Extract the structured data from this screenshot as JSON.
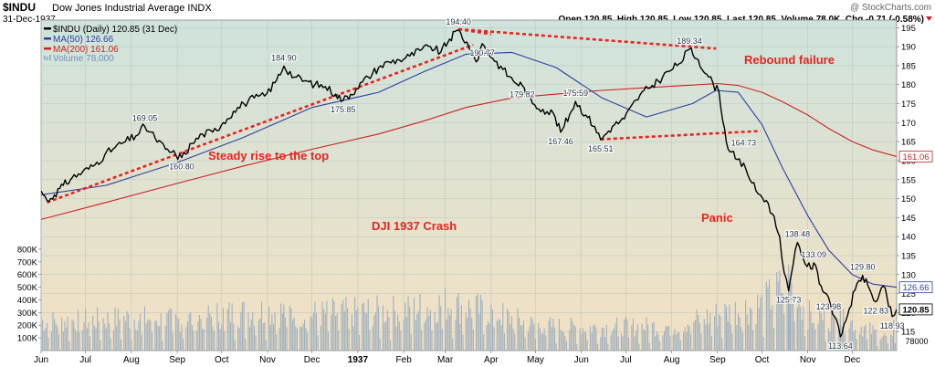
{
  "header": {
    "symbol": "$INDU",
    "name": "Dow Jones Industrial Average INDX",
    "date": "31-Dec-1937",
    "watermark": "@ StockCharts.com",
    "quote": "Open 120.85  High 120.85  Low 120.85  Last 120.85  Volume 78.0K  Chg -0.71 (-0.58%)"
  },
  "legend": [
    {
      "label": "$INDU (Daily) 120.85 (31 Dec)",
      "color": "#000000"
    },
    {
      "label": "MA(50) 126.66",
      "color": "#2b3fa0"
    },
    {
      "label": "MA(200) 161.06",
      "color": "#cc2222"
    },
    {
      "label": "Volume 78,000",
      "color": "#8aa8c8"
    }
  ],
  "annotations": {
    "steady": "Steady rise to the top",
    "crash": "DJI 1937 Crash",
    "rebound": "Rebound failure",
    "panic": "Panic"
  },
  "right_labels": {
    "ma200": "161.06",
    "ma50": "126.66",
    "last": "120.85",
    "volume": "78000"
  },
  "colors": {
    "price": "#000000",
    "ma50": "#2b3fa0",
    "ma200": "#cc2222",
    "annotation_red": "#e8241f",
    "volume_bar": "#9fb0bf",
    "bg_top": "#cfe3dc",
    "bg_bottom": "#f3e1c3"
  },
  "chart_data": {
    "type": "line",
    "x_start": "1936-06-01",
    "x_end": "1937-12-31",
    "y_axis": {
      "min": 110,
      "max": 197,
      "ticks": [
        115,
        120,
        125,
        130,
        135,
        140,
        145,
        150,
        155,
        160,
        165,
        170,
        175,
        180,
        185,
        190,
        195
      ],
      "position": "right"
    },
    "volume_axis": {
      "max": 850000,
      "ticks": [
        100000,
        200000,
        300000,
        400000,
        500000,
        600000,
        700000,
        800000
      ],
      "tick_labels": [
        "100K",
        "200K",
        "300K",
        "400K",
        "500K",
        "600K",
        "700K",
        "800K"
      ],
      "position": "left"
    },
    "x_ticks": [
      {
        "label": "Jun",
        "date": "1936-06-01"
      },
      {
        "label": "Jul",
        "date": "1936-07-01"
      },
      {
        "label": "Aug",
        "date": "1936-08-01"
      },
      {
        "label": "Sep",
        "date": "1936-09-01"
      },
      {
        "label": "Oct",
        "date": "1936-10-01"
      },
      {
        "label": "Nov",
        "date": "1936-11-01"
      },
      {
        "label": "Dec",
        "date": "1936-12-01"
      },
      {
        "label": "1937",
        "date": "1937-01-01",
        "bold": true
      },
      {
        "label": "Feb",
        "date": "1937-02-01"
      },
      {
        "label": "Mar",
        "date": "1937-03-01"
      },
      {
        "label": "Apr",
        "date": "1937-04-01"
      },
      {
        "label": "May",
        "date": "1937-05-01"
      },
      {
        "label": "Jun",
        "date": "1937-06-01"
      },
      {
        "label": "Jul",
        "date": "1937-07-01"
      },
      {
        "label": "Aug",
        "date": "1937-08-01"
      },
      {
        "label": "Sep",
        "date": "1937-09-01"
      },
      {
        "label": "Oct",
        "date": "1937-10-01"
      },
      {
        "label": "Nov",
        "date": "1937-11-01"
      },
      {
        "label": "Dec",
        "date": "1937-12-01"
      }
    ],
    "series": [
      {
        "name": "$INDU (Daily)",
        "points": [
          [
            "1936-06-01",
            152.0
          ],
          [
            "1936-06-05",
            149.5
          ],
          [
            "1936-06-10",
            151.0
          ],
          [
            "1936-06-16",
            153.5
          ],
          [
            "1936-06-22",
            155.5
          ],
          [
            "1936-06-29",
            157.0
          ],
          [
            "1936-07-06",
            158.5
          ],
          [
            "1936-07-14",
            161.5
          ],
          [
            "1936-07-21",
            163.5
          ],
          [
            "1936-07-28",
            165.0
          ],
          [
            "1936-08-04",
            166.5
          ],
          [
            "1936-08-10",
            169.05
          ],
          [
            "1936-08-17",
            166.0
          ],
          [
            "1936-08-24",
            163.0
          ],
          [
            "1936-08-31",
            161.5
          ],
          [
            "1936-09-04",
            160.8
          ],
          [
            "1936-09-11",
            164.5
          ],
          [
            "1936-09-18",
            167.0
          ],
          [
            "1936-09-25",
            167.5
          ],
          [
            "1936-10-02",
            170.0
          ],
          [
            "1936-10-09",
            173.0
          ],
          [
            "1936-10-16",
            175.0
          ],
          [
            "1936-10-23",
            176.5
          ],
          [
            "1936-10-30",
            177.0
          ],
          [
            "1936-11-06",
            180.5
          ],
          [
            "1936-11-12",
            184.9
          ],
          [
            "1936-11-19",
            182.0
          ],
          [
            "1936-11-26",
            181.0
          ],
          [
            "1936-12-03",
            180.0
          ],
          [
            "1936-12-10",
            179.5
          ],
          [
            "1936-12-17",
            177.5
          ],
          [
            "1936-12-22",
            175.85
          ],
          [
            "1936-12-31",
            179.0
          ],
          [
            "1937-01-08",
            182.0
          ],
          [
            "1937-01-15",
            184.5
          ],
          [
            "1937-01-22",
            186.0
          ],
          [
            "1937-01-29",
            186.5
          ],
          [
            "1937-02-05",
            187.5
          ],
          [
            "1937-02-12",
            189.0
          ],
          [
            "1937-02-19",
            190.0
          ],
          [
            "1937-02-26",
            188.5
          ],
          [
            "1937-03-04",
            192.0
          ],
          [
            "1937-03-10",
            194.4
          ],
          [
            "1937-03-17",
            190.0
          ],
          [
            "1937-03-22",
            186.0
          ],
          [
            "1937-03-26",
            190.77
          ],
          [
            "1937-04-02",
            187.0
          ],
          [
            "1937-04-09",
            184.0
          ],
          [
            "1937-04-16",
            181.0
          ],
          [
            "1937-04-22",
            179.82
          ],
          [
            "1937-04-29",
            175.0
          ],
          [
            "1937-05-06",
            173.5
          ],
          [
            "1937-05-13",
            172.5
          ],
          [
            "1937-05-18",
            167.46
          ],
          [
            "1937-05-24",
            172.0
          ],
          [
            "1937-05-28",
            175.59
          ],
          [
            "1937-06-04",
            172.0
          ],
          [
            "1937-06-10",
            169.0
          ],
          [
            "1937-06-14",
            165.51
          ],
          [
            "1937-06-22",
            169.0
          ],
          [
            "1937-06-30",
            171.0
          ],
          [
            "1937-07-08",
            176.0
          ],
          [
            "1937-07-16",
            179.0
          ],
          [
            "1937-07-23",
            181.0
          ],
          [
            "1937-07-30",
            183.5
          ],
          [
            "1937-08-06",
            185.5
          ],
          [
            "1937-08-13",
            189.34
          ],
          [
            "1937-08-19",
            186.5
          ],
          [
            "1937-08-26",
            182.0
          ],
          [
            "1937-09-02",
            178.0
          ],
          [
            "1937-09-07",
            164.73
          ],
          [
            "1937-09-13",
            160.5
          ],
          [
            "1937-09-20",
            158.0
          ],
          [
            "1937-09-27",
            152.0
          ],
          [
            "1937-10-04",
            149.5
          ],
          [
            "1937-10-08",
            146.0
          ],
          [
            "1937-10-13",
            140.0
          ],
          [
            "1937-10-16",
            130.5
          ],
          [
            "1937-10-19",
            125.73
          ],
          [
            "1937-10-22",
            132.5
          ],
          [
            "1937-10-25",
            138.48
          ],
          [
            "1937-10-29",
            134.0
          ],
          [
            "1937-11-03",
            131.5
          ],
          [
            "1937-11-05",
            133.09
          ],
          [
            "1937-11-10",
            127.0
          ],
          [
            "1937-11-15",
            123.98
          ],
          [
            "1937-11-19",
            119.0
          ],
          [
            "1937-11-23",
            113.64
          ],
          [
            "1937-11-29",
            121.0
          ],
          [
            "1937-12-03",
            126.0
          ],
          [
            "1937-12-08",
            129.8
          ],
          [
            "1937-12-14",
            125.0
          ],
          [
            "1937-12-17",
            122.83
          ],
          [
            "1937-12-22",
            127.0
          ],
          [
            "1937-12-28",
            118.93
          ],
          [
            "1937-12-31",
            120.85
          ]
        ]
      },
      {
        "name": "MA(50)",
        "points": [
          [
            "1936-06-01",
            151.0
          ],
          [
            "1936-07-15",
            153.5
          ],
          [
            "1936-09-01",
            159.5
          ],
          [
            "1936-10-15",
            166.0
          ],
          [
            "1936-12-01",
            174.0
          ],
          [
            "1937-01-15",
            178.0
          ],
          [
            "1937-02-15",
            183.5
          ],
          [
            "1937-03-15",
            188.0
          ],
          [
            "1937-04-15",
            188.5
          ],
          [
            "1937-05-15",
            184.5
          ],
          [
            "1937-06-15",
            176.5
          ],
          [
            "1937-07-15",
            171.5
          ],
          [
            "1937-08-15",
            175.0
          ],
          [
            "1937-08-31",
            178.5
          ],
          [
            "1937-09-15",
            178.0
          ],
          [
            "1937-10-01",
            169.5
          ],
          [
            "1937-10-15",
            158.0
          ],
          [
            "1937-11-01",
            145.5
          ],
          [
            "1937-11-15",
            136.5
          ],
          [
            "1937-12-01",
            130.0
          ],
          [
            "1937-12-15",
            127.5
          ],
          [
            "1937-12-31",
            126.66
          ]
        ]
      },
      {
        "name": "MA(200)",
        "points": [
          [
            "1936-06-01",
            144.5
          ],
          [
            "1936-07-15",
            149.0
          ],
          [
            "1936-09-01",
            154.0
          ],
          [
            "1936-10-15",
            158.5
          ],
          [
            "1936-12-01",
            163.0
          ],
          [
            "1937-01-15",
            167.0
          ],
          [
            "1937-02-15",
            170.5
          ],
          [
            "1937-03-15",
            174.0
          ],
          [
            "1937-04-15",
            176.5
          ],
          [
            "1937-05-15",
            177.5
          ],
          [
            "1937-06-15",
            178.5
          ],
          [
            "1937-07-15",
            179.2
          ],
          [
            "1937-08-15",
            179.9
          ],
          [
            "1937-09-01",
            180.3
          ],
          [
            "1937-09-15",
            179.8
          ],
          [
            "1937-10-01",
            178.0
          ],
          [
            "1937-10-15",
            175.5
          ],
          [
            "1937-11-01",
            172.0
          ],
          [
            "1937-11-15",
            168.5
          ],
          [
            "1937-12-01",
            165.0
          ],
          [
            "1937-12-15",
            162.8
          ],
          [
            "1937-12-31",
            161.06
          ]
        ]
      }
    ],
    "data_labels": [
      {
        "text": "169.05",
        "date": "1936-08-10",
        "value": 169.05,
        "pos": "above"
      },
      {
        "text": "160.80",
        "date": "1936-09-04",
        "value": 160.8,
        "pos": "below"
      },
      {
        "text": "184.90",
        "date": "1936-11-12",
        "value": 184.9,
        "pos": "above"
      },
      {
        "text": "175.85",
        "date": "1936-12-22",
        "value": 175.85,
        "pos": "below"
      },
      {
        "text": "194.40",
        "date": "1937-03-10",
        "value": 194.4,
        "pos": "above"
      },
      {
        "text": "190.77",
        "date": "1937-03-26",
        "value": 190.77,
        "pos": "below"
      },
      {
        "text": "179.82",
        "date": "1937-04-22",
        "value": 179.82,
        "pos": "below"
      },
      {
        "text": "167.46",
        "date": "1937-05-18",
        "value": 167.46,
        "pos": "below"
      },
      {
        "text": "175.59",
        "date": "1937-05-28",
        "value": 175.59,
        "pos": "above"
      },
      {
        "text": "165.51",
        "date": "1937-06-14",
        "value": 165.51,
        "pos": "below"
      },
      {
        "text": "189.34",
        "date": "1937-08-13",
        "value": 189.34,
        "pos": "above"
      },
      {
        "text": "164.73",
        "date": "1937-09-07",
        "value": 164.73,
        "pos": "right"
      },
      {
        "text": "125.73",
        "date": "1937-10-19",
        "value": 125.73,
        "pos": "below"
      },
      {
        "text": "138.48",
        "date": "1937-10-25",
        "value": 138.48,
        "pos": "above"
      },
      {
        "text": "133.09",
        "date": "1937-11-05",
        "value": 133.09,
        "pos": "above"
      },
      {
        "text": "123.98",
        "date": "1937-11-15",
        "value": 123.98,
        "pos": "below"
      },
      {
        "text": "113.64",
        "date": "1937-11-23",
        "value": 113.64,
        "pos": "below"
      },
      {
        "text": "129.80",
        "date": "1937-12-08",
        "value": 129.8,
        "pos": "above"
      },
      {
        "text": "122.83",
        "date": "1937-12-17",
        "value": 122.83,
        "pos": "below"
      },
      {
        "text": "118.93",
        "date": "1937-12-28",
        "value": 118.93,
        "pos": "below"
      }
    ],
    "trendlines": [
      {
        "from": [
          "1936-06-05",
          149.0
        ],
        "to": [
          "1937-03-20",
          190.5
        ]
      },
      {
        "from": [
          "1937-03-10",
          194.6
        ],
        "to": [
          "1937-04-01",
          193.3
        ]
      },
      {
        "from": [
          "1937-03-10",
          194.6
        ],
        "to": [
          "1937-08-31",
          189.5
        ]
      },
      {
        "from": [
          "1937-06-14",
          165.6
        ],
        "to": [
          "1937-09-30",
          167.8
        ]
      }
    ],
    "volume": [
      [
        "1936-06-01",
        240000
      ],
      [
        "1936-07-01",
        250000
      ],
      [
        "1936-08-01",
        270000
      ],
      [
        "1936-09-01",
        250000
      ],
      [
        "1936-10-01",
        300000
      ],
      [
        "1936-11-01",
        330000
      ],
      [
        "1936-12-01",
        300000
      ],
      [
        "1937-01-01",
        320000
      ],
      [
        "1937-02-01",
        330000
      ],
      [
        "1937-03-01",
        390000
      ],
      [
        "1937-04-01",
        320000
      ],
      [
        "1937-05-01",
        210000
      ],
      [
        "1937-06-01",
        190000
      ],
      [
        "1937-07-01",
        200000
      ],
      [
        "1937-08-01",
        200000
      ],
      [
        "1937-09-01",
        300000
      ],
      [
        "1937-10-01",
        380000
      ],
      [
        "1937-10-19",
        570000
      ],
      [
        "1937-11-01",
        300000
      ],
      [
        "1937-12-01",
        230000
      ],
      [
        "1937-12-31",
        78000
      ]
    ],
    "volume_peaks": [
      [
        "1937-10-19",
        570000
      ],
      [
        "1937-10-20",
        360000
      ],
      [
        "1937-10-25",
        340000
      ],
      [
        "1937-09-07",
        300000
      ],
      [
        "1937-11-23",
        320000
      ],
      [
        "1937-12-29",
        240000
      ],
      [
        "1937-03-10",
        340000
      ],
      [
        "1936-11-12",
        300000
      ]
    ],
    "grid": true
  }
}
